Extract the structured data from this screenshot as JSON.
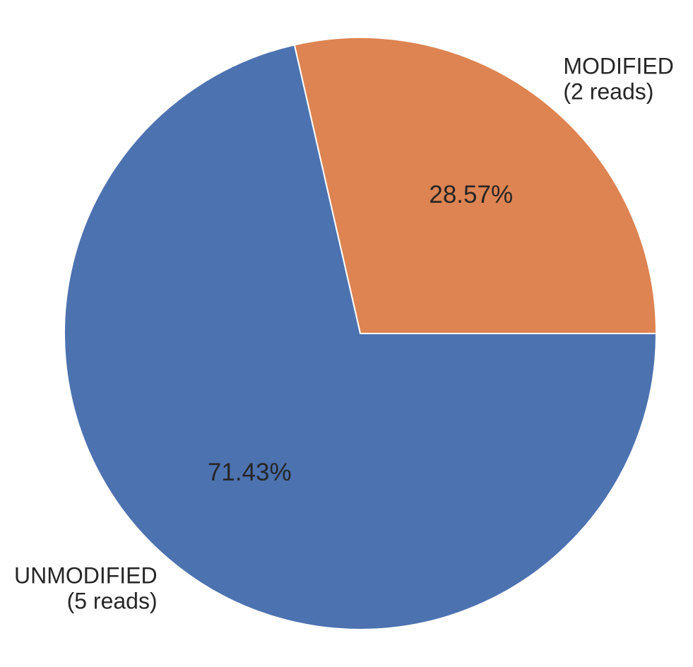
{
  "chart_data": {
    "type": "pie",
    "title": "",
    "start_angle_deg": 0,
    "direction": "counterclockwise",
    "slices": [
      {
        "label_line1": "MODIFIED",
        "label_line2": "(2 reads)",
        "value": 2,
        "percent": "28.57%",
        "color": "#dd8452"
      },
      {
        "label_line1": "UNMODIFIED",
        "label_line2": "(5 reads)",
        "value": 5,
        "percent": "71.43%",
        "color": "#4c72b0"
      }
    ]
  }
}
